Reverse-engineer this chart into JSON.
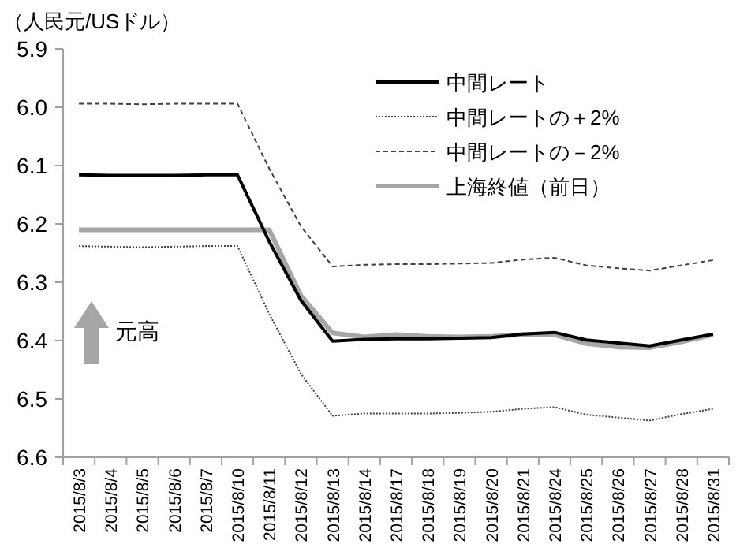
{
  "chart_data": {
    "type": "line",
    "ylabel": "（人民元/USドル）",
    "categories": [
      "2015/8/3",
      "2015/8/4",
      "2015/8/5",
      "2015/8/6",
      "2015/8/7",
      "2015/8/10",
      "2015/8/11",
      "2015/8/12",
      "2015/8/13",
      "2015/8/14",
      "2015/8/17",
      "2015/8/18",
      "2015/8/19",
      "2015/8/20",
      "2015/8/21",
      "2015/8/24",
      "2015/8/25",
      "2015/8/26",
      "2015/8/27",
      "2015/8/28",
      "2015/8/31"
    ],
    "series": [
      {
        "name": "中間レート",
        "color": "#000000",
        "line_style": "solid",
        "values": [
          6.116,
          6.117,
          6.117,
          6.117,
          6.116,
          6.116,
          6.23,
          6.331,
          6.401,
          6.398,
          6.397,
          6.397,
          6.396,
          6.395,
          6.389,
          6.386,
          6.399,
          6.404,
          6.409,
          6.399,
          6.389
        ]
      },
      {
        "name": "中間レートの＋2%",
        "color": "#404040",
        "line_style": "dotted",
        "values": [
          6.238,
          6.239,
          6.24,
          6.239,
          6.238,
          6.238,
          6.354,
          6.457,
          6.529,
          6.525,
          6.525,
          6.525,
          6.524,
          6.522,
          6.517,
          6.514,
          6.527,
          6.532,
          6.537,
          6.526,
          6.517
        ]
      },
      {
        "name": "中間レートの－2%",
        "color": "#404040",
        "line_style": "dashed",
        "values": [
          5.994,
          5.994,
          5.995,
          5.994,
          5.994,
          5.994,
          6.105,
          6.204,
          6.273,
          6.27,
          6.269,
          6.269,
          6.268,
          6.267,
          6.261,
          6.258,
          6.271,
          6.276,
          6.28,
          6.271,
          6.262
        ]
      },
      {
        "name": "上海終値（前日）",
        "color": "#a6a6a6",
        "line_style": "solid",
        "values": [
          6.21,
          6.21,
          6.21,
          6.21,
          6.21,
          6.21,
          6.21,
          6.323,
          6.387,
          6.394,
          6.39,
          6.393,
          6.394,
          6.393,
          6.39,
          6.39,
          6.405,
          6.411,
          6.412,
          6.402,
          6.39
        ]
      }
    ],
    "ylim": [
      6.6,
      5.9
    ],
    "yticks": [
      {
        "value": 5.9,
        "label": "5.9"
      },
      {
        "value": 6.0,
        "label": "6.0"
      },
      {
        "value": 6.1,
        "label": "6.1"
      },
      {
        "value": 6.2,
        "label": "6.2"
      },
      {
        "value": 6.3,
        "label": "6.3"
      },
      {
        "value": 6.4,
        "label": "6.4"
      },
      {
        "value": 6.5,
        "label": "6.5"
      },
      {
        "value": 6.6,
        "label": "6.6"
      }
    ],
    "grid": false,
    "legend": "top right",
    "marker": "none",
    "annotations": [
      "元高"
    ]
  }
}
